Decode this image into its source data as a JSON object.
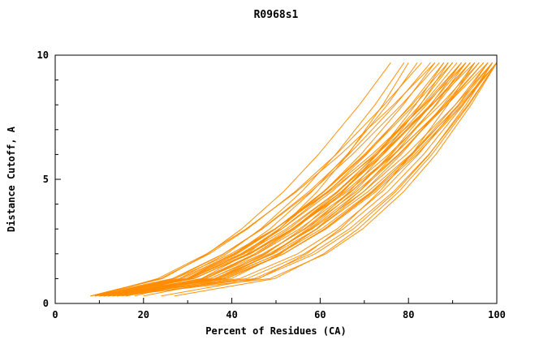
{
  "page": {
    "background": "#ffffff"
  },
  "chart_data": {
    "type": "line",
    "title": "R0968s1",
    "xlabel": "Percent of Residues (CA)",
    "ylabel": "Distance Cutoff, A",
    "xlim": [
      0,
      100
    ],
    "ylim": [
      0,
      10
    ],
    "x_major_ticks": [
      0,
      20,
      40,
      60,
      80,
      100
    ],
    "x_minor_ticks": [
      10,
      30,
      50,
      70,
      90
    ],
    "y_major_ticks": [
      0,
      5,
      10
    ],
    "y_minor_ticks": [
      1,
      2,
      3,
      4,
      6,
      7,
      8,
      9
    ],
    "grid": false,
    "legend": "none",
    "line_color": "#ff8c00",
    "axis_color": "#000000",
    "series": [
      [
        [
          8,
          0.3
        ],
        [
          24.3,
          1
        ],
        [
          34.5,
          2
        ],
        [
          42.2,
          3
        ],
        [
          51.7,
          4.5
        ],
        [
          59.6,
          6
        ],
        [
          68.9,
          8
        ],
        [
          76,
          9.7
        ]
      ],
      [
        [
          9,
          0.3
        ],
        [
          28.1,
          1
        ],
        [
          38.8,
          2
        ],
        [
          46.5,
          3
        ],
        [
          55.8,
          4.5
        ],
        [
          63.5,
          6
        ],
        [
          72.4,
          8
        ],
        [
          79,
          9.7
        ]
      ],
      [
        [
          10,
          0.3
        ],
        [
          29.7,
          1
        ],
        [
          40.6,
          2
        ],
        [
          48.6,
          3
        ],
        [
          58.1,
          4.5
        ],
        [
          66.1,
          6
        ],
        [
          75.2,
          8
        ],
        [
          82,
          9.7
        ]
      ],
      [
        [
          8,
          0.3
        ],
        [
          23.8,
          1
        ],
        [
          34.9,
          2
        ],
        [
          43.5,
          3
        ],
        [
          54.3,
          4.5
        ],
        [
          63.6,
          6
        ],
        [
          74.5,
          8
        ],
        [
          83,
          9.7
        ]
      ],
      [
        [
          12,
          0.3
        ],
        [
          33.1,
          1
        ],
        [
          43.5,
          2
        ],
        [
          50.8,
          3
        ],
        [
          59.3,
          4.5
        ],
        [
          66.3,
          6
        ],
        [
          74.2,
          8
        ],
        [
          80,
          9.7
        ]
      ],
      [
        [
          8,
          0.3
        ],
        [
          26.5,
          1
        ],
        [
          38.1,
          2
        ],
        [
          46.8,
          3
        ],
        [
          57.4,
          4.5
        ],
        [
          66.5,
          6
        ],
        [
          77,
          8
        ],
        [
          85,
          9.7
        ]
      ],
      [
        [
          10,
          0.3
        ],
        [
          30.7,
          1
        ],
        [
          42.3,
          2
        ],
        [
          50.7,
          3
        ],
        [
          60.8,
          4.5
        ],
        [
          69.2,
          6
        ],
        [
          78.8,
          8
        ],
        [
          86,
          9.7
        ]
      ],
      [
        [
          11,
          0.3
        ],
        [
          27,
          1
        ],
        [
          38.2,
          2
        ],
        [
          46.9,
          3
        ],
        [
          57.9,
          4.5
        ],
        [
          67.3,
          6
        ],
        [
          78.4,
          8
        ],
        [
          87,
          9.7
        ]
      ],
      [
        [
          9,
          0.3
        ],
        [
          30.6,
          1
        ],
        [
          42.6,
          2
        ],
        [
          51.3,
          3
        ],
        [
          61.8,
          4.5
        ],
        [
          70.5,
          6
        ],
        [
          80.5,
          8
        ],
        [
          88,
          9.7
        ]
      ],
      [
        [
          13,
          0.3
        ],
        [
          36.3,
          1
        ],
        [
          47.7,
          2
        ],
        [
          55.8,
          3
        ],
        [
          65.2,
          4.5
        ],
        [
          72.9,
          6
        ],
        [
          81.6,
          8
        ],
        [
          88,
          9.7
        ]
      ],
      [
        [
          10,
          0.3
        ],
        [
          28.9,
          1
        ],
        [
          40.8,
          2
        ],
        [
          49.8,
          3
        ],
        [
          60.7,
          4.5
        ],
        [
          70,
          6
        ],
        [
          80.8,
          8
        ],
        [
          89,
          9.7
        ]
      ],
      [
        [
          12,
          0.3
        ],
        [
          33.3,
          1
        ],
        [
          45.2,
          2
        ],
        [
          53.8,
          3
        ],
        [
          64.1,
          4.5
        ],
        [
          72.7,
          6
        ],
        [
          82.6,
          8
        ],
        [
          90,
          9.7
        ]
      ],
      [
        [
          14,
          0.3
        ],
        [
          30,
          1
        ],
        [
          41.2,
          2
        ],
        [
          49.9,
          3
        ],
        [
          60.9,
          4.5
        ],
        [
          70.3,
          6
        ],
        [
          81.4,
          8
        ],
        [
          90,
          9.7
        ]
      ],
      [
        [
          9,
          0.3
        ],
        [
          23.2,
          1
        ],
        [
          34.3,
          2
        ],
        [
          43.2,
          3
        ],
        [
          54.6,
          4.5
        ],
        [
          64.6,
          6
        ],
        [
          76.6,
          8
        ],
        [
          86,
          9.7
        ]
      ],
      [
        [
          11,
          0.3
        ],
        [
          37.2,
          1
        ],
        [
          49,
          2
        ],
        [
          57.2,
          3
        ],
        [
          66.6,
          4.5
        ],
        [
          74.2,
          6
        ],
        [
          82.7,
          8
        ],
        [
          89,
          9.7
        ]
      ],
      [
        [
          9,
          0.3
        ],
        [
          31.4,
          1
        ],
        [
          43.9,
          2
        ],
        [
          52.9,
          3
        ],
        [
          63.8,
          4.5
        ],
        [
          72.9,
          6
        ],
        [
          83.2,
          8
        ],
        [
          91,
          9.7
        ]
      ],
      [
        [
          10,
          0.3
        ],
        [
          29.7,
          1
        ],
        [
          42,
          2
        ],
        [
          51.3,
          3
        ],
        [
          62.6,
          4.5
        ],
        [
          72.3,
          6
        ],
        [
          83.5,
          8
        ],
        [
          92,
          9.7
        ]
      ],
      [
        [
          12,
          0.3
        ],
        [
          36.9,
          1
        ],
        [
          49.1,
          2
        ],
        [
          57.6,
          3
        ],
        [
          67.7,
          4.5
        ],
        [
          75.9,
          6
        ],
        [
          85.1,
          8
        ],
        [
          92,
          9.7
        ]
      ],
      [
        [
          8,
          0.3
        ],
        [
          31.2,
          1
        ],
        [
          44.2,
          2
        ],
        [
          53.6,
          3
        ],
        [
          64.8,
          4.5
        ],
        [
          74.2,
          6
        ],
        [
          84.9,
          8
        ],
        [
          93,
          9.7
        ]
      ],
      [
        [
          11,
          0.3
        ],
        [
          28.3,
          1
        ],
        [
          40.4,
          2
        ],
        [
          49.8,
          3
        ],
        [
          61.6,
          4.5
        ],
        [
          71.7,
          6
        ],
        [
          83.7,
          8
        ],
        [
          93,
          9.7
        ]
      ],
      [
        [
          13,
          0.3
        ],
        [
          35.1,
          1
        ],
        [
          47.4,
          2
        ],
        [
          56.4,
          3
        ],
        [
          67.1,
          4.5
        ],
        [
          76.1,
          6
        ],
        [
          86.3,
          8
        ],
        [
          94,
          9.7
        ]
      ],
      [
        [
          10,
          0.3
        ],
        [
          30.1,
          1
        ],
        [
          42.8,
          2
        ],
        [
          52.3,
          3
        ],
        [
          63.9,
          4.5
        ],
        [
          73.8,
          6
        ],
        [
          85.3,
          8
        ],
        [
          94,
          9.7
        ]
      ],
      [
        [
          12,
          0.3
        ],
        [
          37.8,
          1
        ],
        [
          50.4,
          2
        ],
        [
          59.3,
          3
        ],
        [
          69.8,
          4.5
        ],
        [
          78.3,
          6
        ],
        [
          87.9,
          8
        ],
        [
          95,
          9.7
        ]
      ],
      [
        [
          9,
          0.3
        ],
        [
          27.1,
          1
        ],
        [
          39.8,
          2
        ],
        [
          49.7,
          3
        ],
        [
          62,
          4.5
        ],
        [
          72.7,
          6
        ],
        [
          85.3,
          8
        ],
        [
          95,
          9.7
        ]
      ],
      [
        [
          14,
          0.3
        ],
        [
          36.4,
          1
        ],
        [
          48.9,
          2
        ],
        [
          57.9,
          3
        ],
        [
          68.8,
          4.5
        ],
        [
          77.9,
          6
        ],
        [
          88.2,
          8
        ],
        [
          96,
          9.7
        ]
      ],
      [
        [
          11,
          0.3
        ],
        [
          31.4,
          1
        ],
        [
          44.2,
          2
        ],
        [
          53.8,
          3
        ],
        [
          65.6,
          4.5
        ],
        [
          75.5,
          6
        ],
        [
          87.2,
          8
        ],
        [
          96,
          9.7
        ]
      ],
      [
        [
          20,
          0.3
        ],
        [
          39.9,
          1
        ],
        [
          51,
          2
        ],
        [
          59.1,
          3
        ],
        [
          68.8,
          4.5
        ],
        [
          76.8,
          6
        ],
        [
          86.1,
          8
        ],
        [
          93,
          9.7
        ]
      ],
      [
        [
          24,
          0.3
        ],
        [
          46.1,
          1
        ],
        [
          56.9,
          2
        ],
        [
          64.5,
          3
        ],
        [
          73.4,
          4.5
        ],
        [
          80.7,
          6
        ],
        [
          88.9,
          8
        ],
        [
          95,
          9.7
        ]
      ],
      [
        [
          16,
          0.3
        ],
        [
          34.2,
          1
        ],
        [
          45.7,
          2
        ],
        [
          54.3,
          3
        ],
        [
          64.8,
          4.5
        ],
        [
          73.7,
          6
        ],
        [
          84.1,
          8
        ],
        [
          92,
          9.7
        ]
      ],
      [
        [
          18,
          0.3
        ],
        [
          34,
          1
        ],
        [
          45.2,
          2
        ],
        [
          53.9,
          3
        ],
        [
          64.9,
          4.5
        ],
        [
          74.3,
          6
        ],
        [
          85.4,
          8
        ],
        [
          94,
          9.7
        ]
      ],
      [
        [
          10,
          0.3
        ],
        [
          33.8,
          1
        ],
        [
          47,
          2
        ],
        [
          56.6,
          3
        ],
        [
          68.2,
          4.5
        ],
        [
          77.7,
          6
        ],
        [
          88.7,
          8
        ],
        [
          97,
          9.7
        ]
      ],
      [
        [
          12,
          0.3
        ],
        [
          38.7,
          1
        ],
        [
          51.8,
          2
        ],
        [
          61,
          3
        ],
        [
          71.8,
          4.5
        ],
        [
          80.7,
          6
        ],
        [
          90.6,
          8
        ],
        [
          98,
          9.7
        ]
      ],
      [
        [
          9,
          0.3
        ],
        [
          30.3,
          1
        ],
        [
          43.7,
          2
        ],
        [
          53.8,
          3
        ],
        [
          66.1,
          4.5
        ],
        [
          76.6,
          6
        ],
        [
          88.7,
          8
        ],
        [
          98,
          9.7
        ]
      ],
      [
        [
          11,
          0.3
        ],
        [
          35,
          1
        ],
        [
          48.4,
          2
        ],
        [
          58.2,
          3
        ],
        [
          69.8,
          4.5
        ],
        [
          79.5,
          6
        ],
        [
          90.6,
          8
        ],
        [
          99,
          9.7
        ]
      ],
      [
        [
          13,
          0.3
        ],
        [
          43.4,
          1
        ],
        [
          56.4,
          2
        ],
        [
          65.2,
          3
        ],
        [
          75.3,
          4.5
        ],
        [
          83.4,
          6
        ],
        [
          92.4,
          8
        ],
        [
          99,
          9.7
        ]
      ],
      [
        [
          10,
          0.3
        ],
        [
          38,
          1
        ],
        [
          51.7,
          2
        ],
        [
          61.3,
          3
        ],
        [
          72.6,
          4.5
        ],
        [
          81.9,
          6
        ],
        [
          92.3,
          8
        ],
        [
          100,
          9.7
        ]
      ],
      [
        [
          12,
          0.3
        ],
        [
          36,
          1
        ],
        [
          49.4,
          2
        ],
        [
          59.2,
          3
        ],
        [
          70.8,
          4.5
        ],
        [
          80.5,
          6
        ],
        [
          91.6,
          8
        ],
        [
          100,
          9.7
        ]
      ],
      [
        [
          14,
          0.3
        ],
        [
          48.6,
          1
        ],
        [
          61.3,
          2
        ],
        [
          69.6,
          3
        ],
        [
          78.9,
          4.5
        ],
        [
          86.2,
          6
        ],
        [
          94.2,
          8
        ],
        [
          100,
          9.7
        ]
      ],
      [
        [
          9,
          0.3
        ],
        [
          37,
          1
        ],
        [
          50.7,
          2
        ],
        [
          60.3,
          3
        ],
        [
          71.6,
          4.5
        ],
        [
          80.9,
          6
        ],
        [
          91.3,
          8
        ],
        [
          99,
          9.7
        ]
      ],
      [
        [
          27,
          0.3
        ],
        [
          49.7,
          1
        ],
        [
          60.8,
          2
        ],
        [
          68.6,
          3
        ],
        [
          77.8,
          4.5
        ],
        [
          85.3,
          6
        ],
        [
          93.7,
          8
        ],
        [
          100,
          9.7
        ]
      ],
      [
        [
          15,
          0.3
        ],
        [
          45.1,
          1
        ],
        [
          57.9,
          2
        ],
        [
          66.6,
          3
        ],
        [
          76.6,
          4.5
        ],
        [
          84.6,
          6
        ],
        [
          93.5,
          8
        ],
        [
          100,
          9.7
        ]
      ],
      [
        [
          11,
          0.3
        ],
        [
          41.8,
          1
        ],
        [
          54.9,
          2
        ],
        [
          63.8,
          3
        ],
        [
          74,
          4.5
        ],
        [
          82.2,
          6
        ],
        [
          91.3,
          8
        ],
        [
          98,
          9.7
        ]
      ],
      [
        [
          13,
          0.3
        ],
        [
          33.1,
          1
        ],
        [
          45.8,
          2
        ],
        [
          55.3,
          3
        ],
        [
          66.9,
          4.5
        ],
        [
          76.8,
          6
        ],
        [
          88.3,
          8
        ],
        [
          97,
          9.7
        ]
      ],
      [
        [
          10,
          0.3
        ],
        [
          45.9,
          1
        ],
        [
          58.9,
          2
        ],
        [
          67.5,
          3
        ],
        [
          77.1,
          4.5
        ],
        [
          84.7,
          6
        ],
        [
          93,
          8
        ],
        [
          99,
          9.7
        ]
      ],
      [
        [
          16,
          0.3
        ],
        [
          38.9,
          1
        ],
        [
          51.7,
          2
        ],
        [
          61,
          3
        ],
        [
          72.1,
          4.5
        ],
        [
          81.4,
          6
        ],
        [
          92,
          8
        ],
        [
          100,
          9.7
        ]
      ]
    ]
  }
}
